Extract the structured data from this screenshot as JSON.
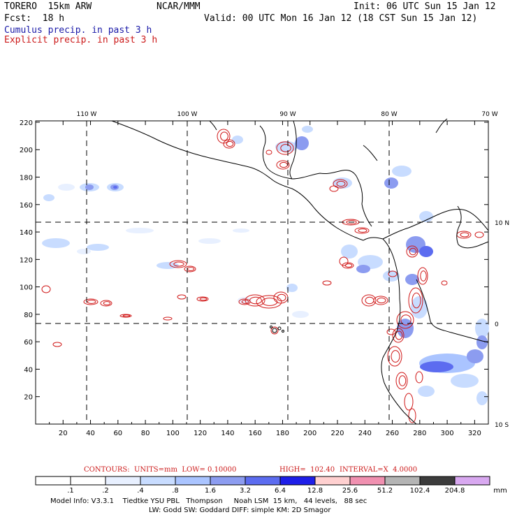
{
  "header": {
    "model": "TORERO  15km ARW",
    "center": "NCAR/MMM",
    "init": "Init: 06 UTC Sun 15 Jan 12",
    "fcst": "Fcst:  18 h",
    "valid": "Valid: 00 UTC Mon 16 Jan 12 (18 CST Sun 15 Jan 12)",
    "cumulus": "Cumulus precip. in past 3 h",
    "explicit": "Explicit precip. in past 3 h"
  },
  "map": {
    "x_ticks": [
      "20",
      "40",
      "60",
      "80",
      "100",
      "120",
      "140",
      "160",
      "180",
      "200",
      "220",
      "240",
      "260",
      "280",
      "300",
      "320"
    ],
    "y_ticks": [
      "20",
      "40",
      "60",
      "80",
      "100",
      "120",
      "140",
      "160",
      "180",
      "200",
      "220"
    ],
    "lon_labels": [
      "110 W",
      "100 W",
      "90 W",
      "80 W",
      "70 W"
    ],
    "lat_labels": [
      "10 N",
      "0",
      "10 S"
    ]
  },
  "contours": {
    "text": "CONTOURS:  UNITS=mm  LOW= 0.10000",
    "high": "HIGH=  102.40",
    "interval": "INTERVAL=X  4.0000"
  },
  "colorbar": {
    "labels": [
      ".1",
      ".2",
      ".4",
      ".8",
      "1.6",
      "3.2",
      "6.4",
      "12.8",
      "25.6",
      "51.2",
      "102.4",
      "204.8"
    ],
    "unit": "mm",
    "colors": [
      "#ffffff",
      "#ffffff",
      "#e8f0ff",
      "#c8dcff",
      "#aac4ff",
      "#8c9cf0",
      "#5c6cf0",
      "#1e1ee8",
      "#ffd0d0",
      "#f090b0",
      "#b4b4b4",
      "#3c3c3c",
      "#d8a8f0"
    ]
  },
  "footer": {
    "line1": "Model Info: V3.3.1    Tiedtke YSU PBL   Thompson     Noah LSM  15 km,   44 levels,   88 sec",
    "line2": "LW: Godd SW: Goddard DIFF: simple KM: 2D Smagor"
  }
}
